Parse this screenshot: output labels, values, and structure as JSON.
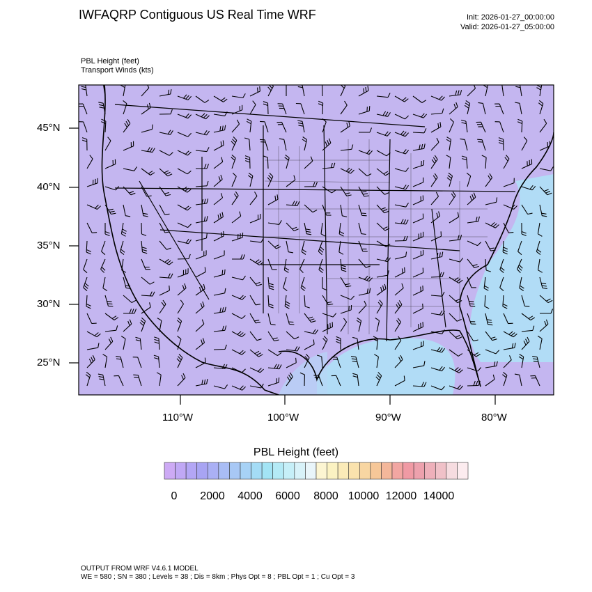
{
  "header": {
    "title": "IWFAQRP Contiguous US Real Time WRF",
    "init": "Init: 2026-01-27_00:00:00",
    "valid": "Valid: 2026-01-27_05:00:00"
  },
  "fields": {
    "line1": "PBL Height   (feet)",
    "line2": "Transport Winds   (kts)"
  },
  "map": {
    "lat_labels": [
      "45°N",
      "40°N",
      "35°N",
      "30°N",
      "25°N"
    ],
    "lon_labels": [
      "110°W",
      "100°W",
      "90°W",
      "80°W"
    ],
    "background_color": "#c4b6f0",
    "ocean_color": "#aee3f7"
  },
  "colorbar": {
    "title": "PBL Height  (feet)",
    "labels": [
      "0",
      "2000",
      "4000",
      "6000",
      "8000",
      "10000",
      "12000",
      "14000"
    ],
    "colors": [
      "#cdaaf5",
      "#c0a8f5",
      "#b3a6f5",
      "#a8a4f3",
      "#aab0f5",
      "#a9bdf5",
      "#a8c8f5",
      "#a7d2f6",
      "#a4dcf6",
      "#a3e4f5",
      "#b4eaf6",
      "#c6eff8",
      "#d8f2f9",
      "#e9f5fa",
      "#fcf5d2",
      "#fbf2c2",
      "#fbebb8",
      "#fae2ad",
      "#f8d6a2",
      "#f6c798",
      "#f4b79a",
      "#f2a6a2",
      "#f09aa4",
      "#eda1ad",
      "#eeb0ba",
      "#f0c1c8",
      "#f6dce0",
      "#fcecef"
    ]
  },
  "footer": {
    "line1": "OUTPUT FROM WRF V4.6.1 MODEL",
    "line2": "WE = 580 ; SN = 380 ; Levels = 38 ; Dis = 8km ; Phys Opt = 8 ; PBL Opt = 1 ; Cu Opt = 3"
  }
}
